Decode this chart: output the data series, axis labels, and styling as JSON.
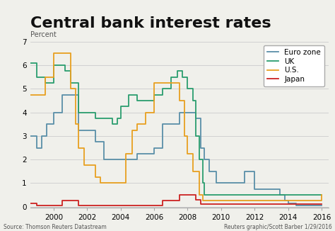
{
  "title": "Central bank interest rates",
  "ylabel": "Percent",
  "source_left": "Source: Thomson Reuters Datastream",
  "source_right": "Reuters graphic/Scott Barber 1/29/2016",
  "ylim": [
    -0.05,
    7.0
  ],
  "xlim": [
    1998.6,
    2016.4
  ],
  "yticks": [
    0,
    1,
    2,
    3,
    4,
    5,
    6,
    7
  ],
  "xticks": [
    2000,
    2002,
    2004,
    2006,
    2008,
    2010,
    2012,
    2014,
    2016
  ],
  "colors": {
    "euro_zone": "#5a8fa8",
    "uk": "#2a9d6e",
    "us": "#e8a020",
    "japan": "#cc2222"
  },
  "legend_labels": [
    "Euro zone",
    "UK",
    "U.S.",
    "Japan"
  ],
  "euro_zone": {
    "x": [
      1998.6,
      1999.0,
      1999.3,
      1999.6,
      2000.0,
      2000.5,
      2001.0,
      2001.5,
      2002.0,
      2002.5,
      2003.0,
      2003.5,
      2004.0,
      2004.5,
      2005.0,
      2005.5,
      2006.0,
      2006.5,
      2007.0,
      2007.5,
      2008.0,
      2008.5,
      2008.8,
      2009.0,
      2009.3,
      2009.7,
      2010.0,
      2010.5,
      2011.0,
      2011.4,
      2011.8,
      2012.0,
      2012.5,
      2012.8,
      2013.0,
      2013.5,
      2013.8,
      2014.0,
      2014.5,
      2014.8,
      2015.0,
      2015.5,
      2016.0
    ],
    "y": [
      3.0,
      2.5,
      3.0,
      3.5,
      4.0,
      4.75,
      4.75,
      3.25,
      3.25,
      2.75,
      2.0,
      2.0,
      2.0,
      2.0,
      2.25,
      2.25,
      2.5,
      3.5,
      3.5,
      4.0,
      4.0,
      3.75,
      2.5,
      2.0,
      1.5,
      1.0,
      1.0,
      1.0,
      1.0,
      1.5,
      1.5,
      0.75,
      0.75,
      0.75,
      0.75,
      0.5,
      0.25,
      0.15,
      0.05,
      0.05,
      0.05,
      0.05,
      0.05
    ]
  },
  "uk": {
    "x": [
      1998.6,
      1999.0,
      1999.5,
      2000.0,
      2000.3,
      2000.7,
      2001.0,
      2001.5,
      2001.8,
      2002.0,
      2002.5,
      2003.0,
      2003.5,
      2003.8,
      2004.0,
      2004.5,
      2004.8,
      2005.0,
      2005.5,
      2006.0,
      2006.5,
      2007.0,
      2007.4,
      2007.7,
      2008.0,
      2008.3,
      2008.5,
      2008.7,
      2008.9,
      2009.0,
      2009.2,
      2010.0,
      2015.0,
      2016.0
    ],
    "y": [
      6.1,
      5.5,
      5.25,
      6.0,
      6.0,
      5.75,
      5.25,
      4.0,
      4.0,
      4.0,
      3.75,
      3.75,
      3.5,
      3.75,
      4.25,
      4.75,
      4.75,
      4.5,
      4.5,
      4.75,
      5.0,
      5.5,
      5.75,
      5.5,
      5.0,
      4.5,
      3.0,
      2.0,
      1.0,
      0.5,
      0.5,
      0.5,
      0.5,
      0.5
    ]
  },
  "us": {
    "x": [
      1998.6,
      1999.0,
      1999.5,
      2000.0,
      2000.5,
      2001.0,
      2001.3,
      2001.5,
      2001.8,
      2002.0,
      2002.5,
      2002.8,
      2003.0,
      2003.5,
      2004.0,
      2004.3,
      2004.7,
      2005.0,
      2005.5,
      2006.0,
      2006.5,
      2007.0,
      2007.5,
      2007.8,
      2008.0,
      2008.3,
      2008.7,
      2008.9,
      2009.0,
      2015.5,
      2016.0
    ],
    "y": [
      4.75,
      4.75,
      5.5,
      6.5,
      6.5,
      5.0,
      3.5,
      2.5,
      1.75,
      1.75,
      1.25,
      1.0,
      1.0,
      1.0,
      1.0,
      2.25,
      3.25,
      3.5,
      4.0,
      5.25,
      5.25,
      5.25,
      4.5,
      3.0,
      2.25,
      1.5,
      0.5,
      0.25,
      0.25,
      0.25,
      0.5
    ]
  },
  "japan": {
    "x": [
      1998.6,
      1999.0,
      1999.5,
      2000.0,
      2000.5,
      2001.0,
      2001.5,
      2006.0,
      2006.5,
      2007.0,
      2007.5,
      2008.0,
      2008.5,
      2008.8,
      2016.0
    ],
    "y": [
      0.15,
      0.05,
      0.05,
      0.05,
      0.25,
      0.25,
      0.05,
      0.05,
      0.25,
      0.25,
      0.5,
      0.5,
      0.3,
      0.1,
      0.1
    ]
  },
  "background_color": "#f0f0eb",
  "title_fontsize": 16,
  "label_fontsize": 7,
  "tick_fontsize": 7.5,
  "source_fontsize": 5.5
}
